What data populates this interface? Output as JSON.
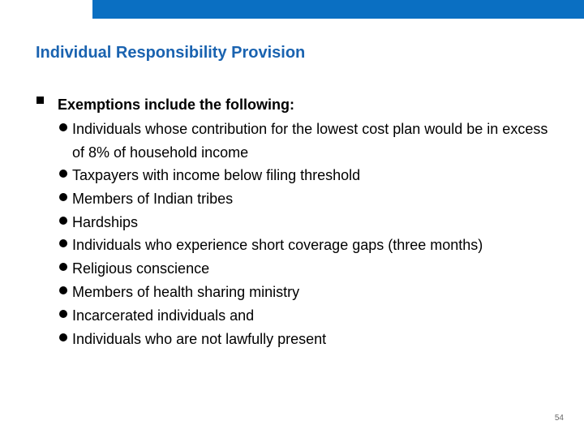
{
  "slide": {
    "title": "Individual Responsibility Provision",
    "main_bullet": "Exemptions include the following:",
    "sub_bullets": [
      "Individuals whose contribution for the lowest cost plan would be in excess of 8% of household income",
      "Taxpayers with income below filing threshold",
      "Members of Indian tribes",
      "Hardships",
      "Individuals who experience short coverage gaps (three months)",
      "Religious conscience",
      "Members of health sharing ministry",
      "Incarcerated individuals and",
      "Individuals who are not lawfully present"
    ],
    "page_number": "54"
  },
  "colors": {
    "top_bar": "#0a6fc2",
    "title": "#1a63b0",
    "body_text": "#000000"
  },
  "icons": {
    "main_bullet": "square-bullet-icon",
    "sub_bullet": "dot-bullet-icon"
  }
}
